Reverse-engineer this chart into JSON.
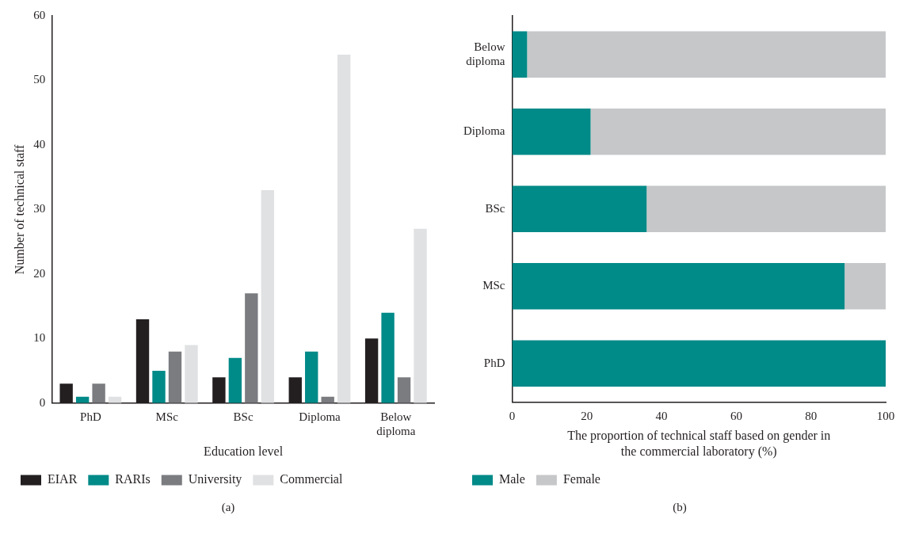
{
  "chart_data": [
    {
      "type": "bar",
      "xlabel": "Education level",
      "ylabel": "Number of technical staff",
      "categories": [
        "PhD",
        "MSc",
        "BSc",
        "Diploma",
        "Below diploma"
      ],
      "series": [
        {
          "name": "EIAR",
          "color": "#231f20",
          "values": [
            3,
            13,
            4,
            4,
            10
          ]
        },
        {
          "name": "RARIs",
          "color": "#008a88",
          "values": [
            1,
            5,
            7,
            8,
            14
          ]
        },
        {
          "name": "University",
          "color": "#7b7c80",
          "values": [
            3,
            8,
            17,
            1,
            4
          ]
        },
        {
          "name": "Commercial",
          "color": "#e0e1e3",
          "values": [
            1,
            9,
            33,
            54,
            27
          ]
        }
      ],
      "ylim": [
        0,
        60
      ],
      "yticks": [
        0,
        10,
        20,
        30,
        40,
        50,
        60
      ],
      "grid": false,
      "legend": "bottom",
      "annotations": [
        "(a)"
      ]
    },
    {
      "type": "bar",
      "orientation": "horizontal",
      "stacked": true,
      "xlabel": "The proportion of technical staff based on gender in the commercial laboratory (%)",
      "categories": [
        "Below diploma",
        "Diploma",
        "BSc",
        "MSc",
        "PhD"
      ],
      "series": [
        {
          "name": "Male",
          "color": "#008a88",
          "values": [
            4,
            21,
            36,
            89,
            100
          ]
        },
        {
          "name": "Female",
          "color": "#c6c7c9",
          "values": [
            96,
            79,
            64,
            11,
            0
          ]
        }
      ],
      "xlim": [
        0,
        100
      ],
      "xticks": [
        0,
        20,
        40,
        60,
        80,
        100
      ],
      "grid": false,
      "legend": "bottom left",
      "annotations": [
        "(b)"
      ]
    }
  ]
}
